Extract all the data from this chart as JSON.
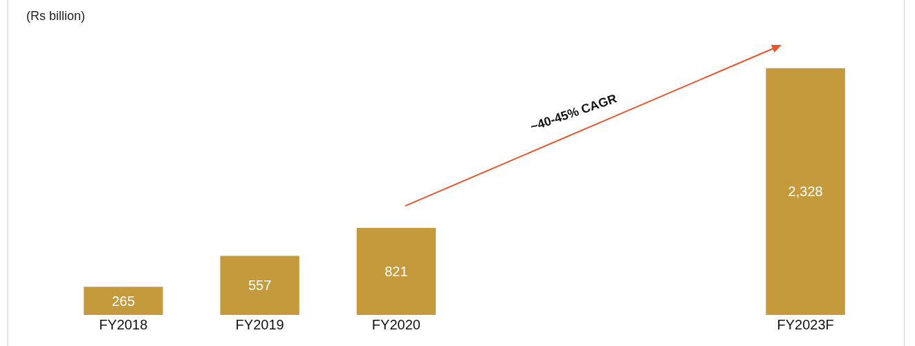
{
  "chart_data": {
    "type": "bar",
    "ylabel": "(Rs billion)",
    "categories": [
      "FY2018",
      "FY2019",
      "FY2020",
      null,
      null,
      "FY2023F"
    ],
    "values": [
      265,
      557,
      821,
      null,
      null,
      2328
    ],
    "color": "#c49a3c",
    "value_labels": [
      "265",
      "557",
      "821",
      null,
      null,
      "2,328"
    ],
    "annotations": [
      "~40-45% CAGR"
    ]
  }
}
